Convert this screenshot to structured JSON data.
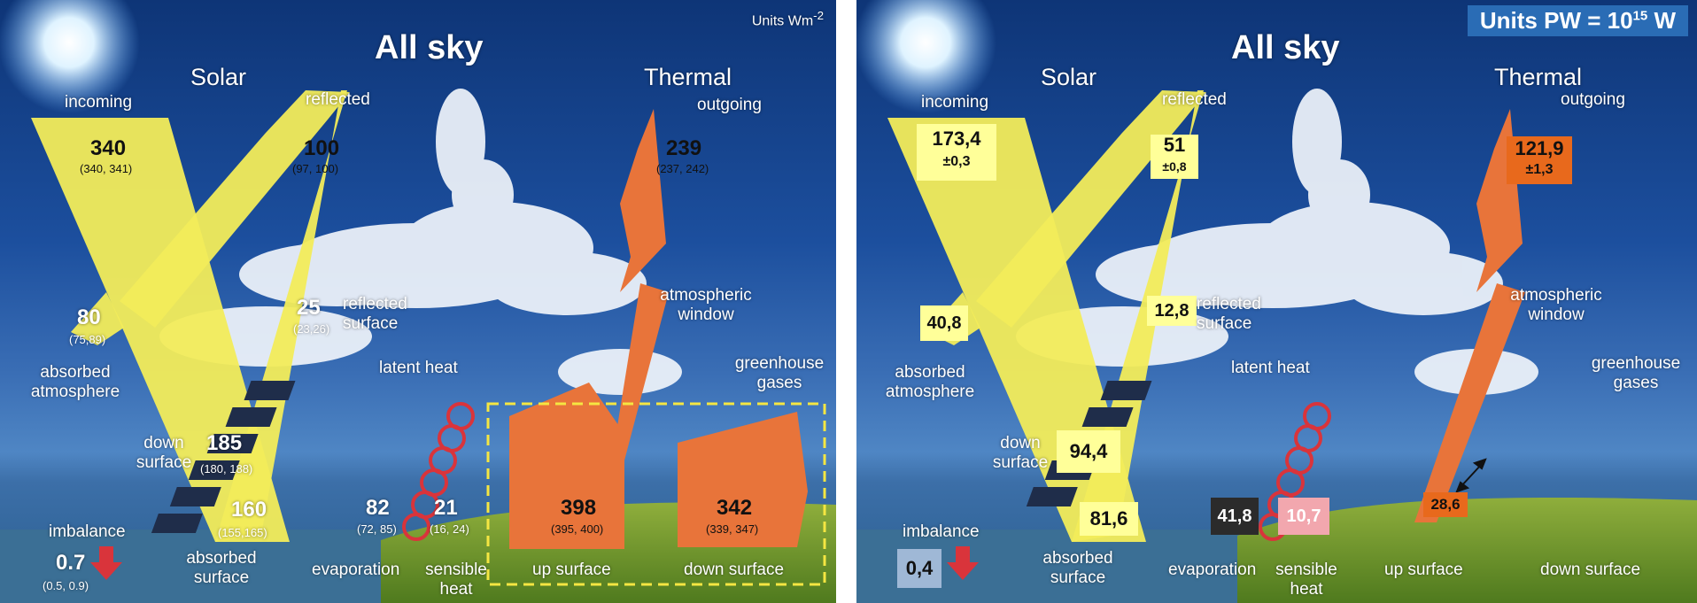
{
  "left": {
    "units": "Units Wm",
    "units_sup": "-2",
    "title": "All sky",
    "solar": "Solar",
    "thermal": "Thermal",
    "incoming": {
      "label": "incoming",
      "value": "340",
      "range": "(340, 341)"
    },
    "reflected": {
      "label": "reflected",
      "value": "100",
      "range": "(97, 100)"
    },
    "outgoing": {
      "label": "outgoing",
      "value": "239",
      "range": "(237, 242)"
    },
    "reflected_surface": {
      "label1": "reflected",
      "label2": "surface",
      "value": "25",
      "range": "(23,26)"
    },
    "absorbed_atmosphere": {
      "label1": "absorbed",
      "label2": "atmosphere",
      "value": "80",
      "range": "(75,89)"
    },
    "atmospheric_window": {
      "label1": "atmospheric",
      "label2": "window"
    },
    "greenhouse_gases": {
      "label1": "greenhouse",
      "label2": "gases"
    },
    "latent_heat": "latent heat",
    "down_surface_solar": {
      "label1": "down",
      "label2": "surface",
      "value": "185",
      "range": "(180, 188)"
    },
    "absorbed_surface": {
      "label1": "absorbed",
      "label2": "surface",
      "value": "160",
      "range": "(155,165)"
    },
    "evaporation": {
      "label": "evaporation",
      "value": "82",
      "range": "(72, 85)"
    },
    "sensible_heat": {
      "label1": "sensible",
      "label2": "heat",
      "value": "21",
      "range": "(16, 24)"
    },
    "up_surface": {
      "label": "up surface",
      "value": "398",
      "range": "(395, 400)"
    },
    "down_surface": {
      "label": "down surface",
      "value": "342",
      "range": "(339, 347)"
    },
    "imbalance": {
      "label": "imbalance",
      "value": "0.7",
      "range": "(0.5, 0.9)"
    }
  },
  "right": {
    "units_prefix": "Units  PW = 10",
    "units_sup": "15",
    "units_suffix": " W",
    "title": "All sky",
    "solar": "Solar",
    "thermal": "Thermal",
    "incoming": {
      "label": "incoming",
      "value": "173,4",
      "unc": "±0,3"
    },
    "reflected": {
      "label": "reflected",
      "value": "51",
      "unc": "±0,8"
    },
    "outgoing": {
      "label": "outgoing",
      "value": "121,9",
      "unc": "±1,3"
    },
    "reflected_surface": {
      "label1": "reflected",
      "label2": "surface",
      "value": "12,8"
    },
    "absorbed_atmosphere": {
      "label1": "absorbed",
      "label2": "atmosphere",
      "value": "40,8"
    },
    "atmospheric_window": {
      "label1": "atmospheric",
      "label2": "window"
    },
    "greenhouse_gases": {
      "label1": "greenhouse",
      "label2": "gases"
    },
    "latent_heat": "latent heat",
    "down_surface_solar": {
      "label1": "down",
      "label2": "surface",
      "value": "94,4"
    },
    "absorbed_surface": {
      "label1": "absorbed",
      "label2": "surface",
      "value": "81,6"
    },
    "evaporation": {
      "label": "evaporation",
      "value": "41,8"
    },
    "sensible_heat": {
      "label1": "sensible",
      "label2": "heat",
      "value": "10,7"
    },
    "window_arrow_value": "28,6",
    "up_surface": {
      "label": "up surface"
    },
    "down_surface": {
      "label": "down surface"
    },
    "imbalance": {
      "label": "imbalance",
      "value": "0,4"
    }
  },
  "colors": {
    "solar_yellow": "#f2ec5a",
    "thermal_orange": "#e8743a",
    "value_box_yellow": "#ffff99",
    "outgoing_box": "#e8691c",
    "evaporation_box": "#2b2b2b",
    "sensible_box": "#f2a7ae",
    "imbalance_box": "#9fb8d6",
    "units_banner": "#2a6cb5",
    "dashed_frame": "#f5e642"
  }
}
